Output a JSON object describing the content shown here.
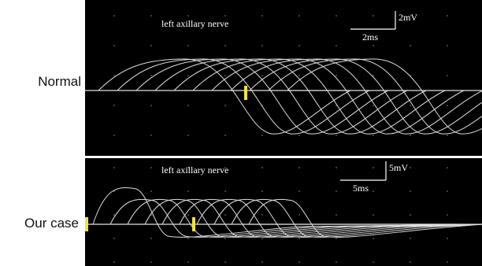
{
  "panels": [
    {
      "label": "Normal",
      "title": "left axillary nerve",
      "amplitude_scale": "2mV",
      "time_scale": "2ms"
    },
    {
      "label": "Our case",
      "title": "left axillary nerve",
      "amplitude_scale": "5mV",
      "time_scale": "5ms"
    }
  ]
}
